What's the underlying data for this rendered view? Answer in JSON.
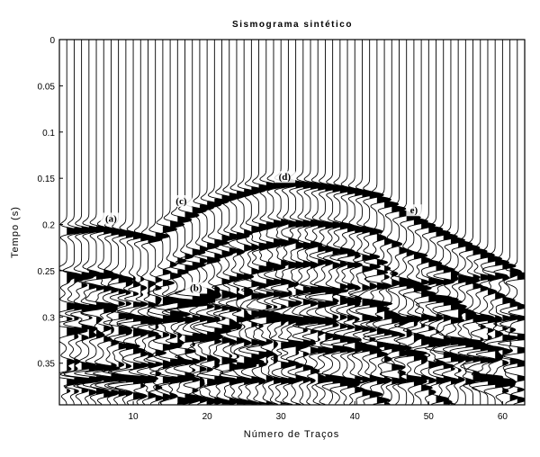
{
  "chart_data": {
    "type": "line",
    "title": "Sismograma sintético",
    "xlabel": "Número de Traços",
    "ylabel": "Tempo (s)",
    "xlim": [
      0,
      63
    ],
    "ylim": [
      0.395,
      0
    ],
    "x_ticks": [
      10,
      20,
      30,
      40,
      50,
      60
    ],
    "x_tick_labels": [
      "10",
      "20",
      "30",
      "40",
      "50",
      "60"
    ],
    "y_ticks": [
      0,
      0.05,
      0.1,
      0.15,
      0.2,
      0.25,
      0.3,
      0.35
    ],
    "y_tick_labels": [
      "0",
      "0.05",
      "0.1",
      "0.15",
      "0.2",
      "0.25",
      "0.3",
      "0.35"
    ],
    "n_traces": 62,
    "series": [
      {
        "name": "(a)",
        "x": [
          1,
          5,
          10,
          15,
          20
        ],
        "y": [
          0.207,
          0.205,
          0.212,
          0.222,
          0.235
        ]
      },
      {
        "name": "(c)",
        "x": [
          10,
          14,
          18,
          22,
          26
        ],
        "y": [
          0.235,
          0.205,
          0.185,
          0.172,
          0.163
        ]
      },
      {
        "name": "(d)",
        "x": [
          26,
          28,
          31,
          34,
          38,
          42
        ],
        "y": [
          0.163,
          0.158,
          0.156,
          0.158,
          0.162,
          0.168
        ]
      },
      {
        "name": "e",
        "x": [
          42,
          46,
          50,
          55,
          60,
          62
        ],
        "y": [
          0.168,
          0.188,
          0.205,
          0.225,
          0.245,
          0.255
        ]
      },
      {
        "name": "(b)",
        "x": [
          1,
          8,
          16,
          24,
          32,
          40,
          48,
          56,
          62
        ],
        "y": [
          0.262,
          0.272,
          0.283,
          0.293,
          0.303,
          0.312,
          0.322,
          0.331,
          0.338
        ]
      }
    ],
    "annotations": [
      {
        "text": "(a)",
        "x": 7,
        "y": 0.197
      },
      {
        "text": "(c)",
        "x": 16.5,
        "y": 0.178
      },
      {
        "text": "(d)",
        "x": 30.5,
        "y": 0.152
      },
      {
        "text": "e)",
        "x": 48,
        "y": 0.188
      },
      {
        "text": "(b)",
        "x": 18.5,
        "y": 0.272
      }
    ],
    "grid": false
  }
}
